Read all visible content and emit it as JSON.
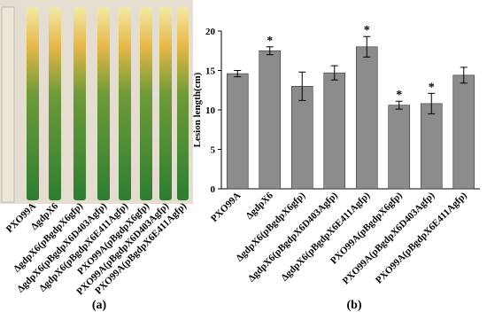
{
  "chart_data": {
    "type": "bar",
    "y_label": "Lesion length(cm)",
    "categories": [
      "PXO99A",
      "ΔgdpX6",
      "ΔgdpX6(pBgdpX6gfp)",
      "ΔgdpX6(pBgdpX6D403Agfp)",
      "ΔgdpX6(pBgdpX6E411Agfp)",
      "PXO99A(pBgdpX6gfp)",
      "PXO99A(pBgdpX6D403Agfp)",
      "PXO99A(pBgdpX6E411Agfp)"
    ],
    "values": [
      14.6,
      17.5,
      13.0,
      14.7,
      18.0,
      10.6,
      10.8,
      14.4
    ],
    "errors": [
      0.4,
      0.5,
      1.8,
      0.9,
      1.3,
      0.5,
      1.3,
      1.0
    ],
    "significance": [
      null,
      "*",
      null,
      null,
      "*",
      "*",
      "*",
      null
    ],
    "color": "#8c8c8c",
    "ylim": [
      0,
      20
    ],
    "yticks": [
      0,
      5,
      10,
      15,
      20
    ]
  },
  "panel_a": {
    "caption": "(a)"
  },
  "panel_b": {
    "caption": "(b)"
  }
}
